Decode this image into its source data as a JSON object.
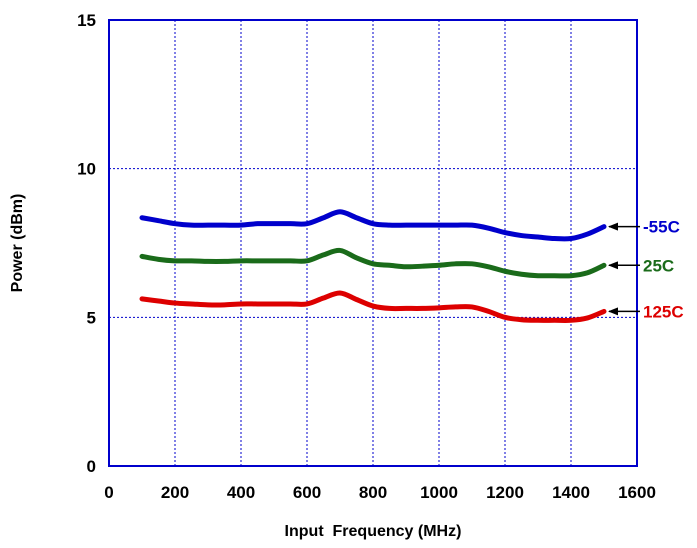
{
  "chart_data": {
    "type": "line",
    "title": "",
    "xlabel": "Input  Frequency (MHz)",
    "ylabel": "Power (dBm)",
    "xlim": [
      0,
      1600
    ],
    "ylim": [
      0,
      15
    ],
    "xticks": [
      0,
      200,
      400,
      600,
      800,
      1000,
      1200,
      1400,
      1600
    ],
    "xtick_labels": [
      "0",
      "200",
      "400",
      "600",
      "800",
      "1000",
      "1200",
      "1400",
      "1600"
    ],
    "yticks": [
      0,
      5,
      10,
      15
    ],
    "ytick_labels": [
      "0",
      "5",
      "10",
      "15"
    ],
    "grid": true,
    "grid_color": "#0000cc",
    "frame_color": "#0000cc",
    "x": [
      100,
      150,
      200,
      250,
      300,
      350,
      400,
      450,
      500,
      550,
      600,
      650,
      700,
      750,
      800,
      850,
      900,
      950,
      1000,
      1050,
      1100,
      1150,
      1200,
      1250,
      1300,
      1350,
      1400,
      1450,
      1500
    ],
    "series": [
      {
        "name": "-55C",
        "color": "#0000cc",
        "values": [
          8.35,
          8.25,
          8.15,
          8.1,
          8.1,
          8.1,
          8.1,
          8.15,
          8.15,
          8.15,
          8.15,
          8.35,
          8.55,
          8.35,
          8.15,
          8.1,
          8.1,
          8.1,
          8.1,
          8.1,
          8.1,
          8.0,
          7.85,
          7.75,
          7.7,
          7.65,
          7.65,
          7.8,
          8.05
        ]
      },
      {
        "name": "25C",
        "color": "#1a6b1a",
        "values": [
          7.05,
          6.95,
          6.9,
          6.9,
          6.88,
          6.88,
          6.9,
          6.9,
          6.9,
          6.9,
          6.9,
          7.1,
          7.25,
          7.0,
          6.8,
          6.75,
          6.7,
          6.72,
          6.75,
          6.8,
          6.8,
          6.7,
          6.55,
          6.45,
          6.4,
          6.4,
          6.4,
          6.5,
          6.75
        ]
      },
      {
        "name": "125C",
        "color": "#dd0000",
        "values": [
          5.62,
          5.55,
          5.48,
          5.45,
          5.42,
          5.42,
          5.45,
          5.45,
          5.45,
          5.45,
          5.45,
          5.65,
          5.82,
          5.6,
          5.38,
          5.3,
          5.3,
          5.3,
          5.32,
          5.35,
          5.35,
          5.2,
          5.0,
          4.92,
          4.9,
          4.9,
          4.9,
          4.98,
          5.2
        ]
      }
    ],
    "annotations": [
      {
        "label": "-55C",
        "color": "#0000cc",
        "arrow_to_y": 8.05
      },
      {
        "label": "25C",
        "color": "#1a6b1a",
        "arrow_to_y": 6.75
      },
      {
        "label": "125C",
        "color": "#dd0000",
        "arrow_to_y": 5.2
      }
    ]
  }
}
